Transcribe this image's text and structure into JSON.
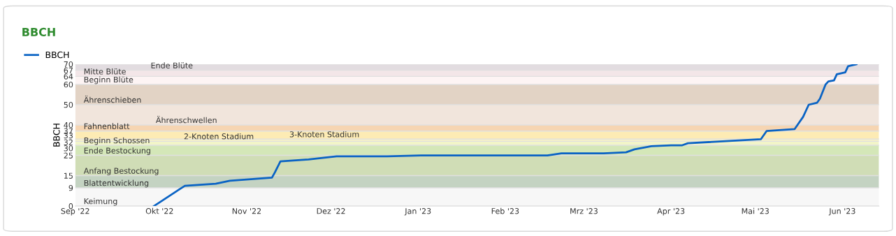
{
  "chart_data": {
    "type": "line",
    "title": "BBCH",
    "ylabel": "BBCH",
    "x": [
      "2022-09-29",
      "2022-10-10",
      "2022-10-21",
      "2022-10-26",
      "2022-11-10",
      "2022-11-11",
      "2022-11-13",
      "2022-11-23",
      "2022-12-03",
      "2022-12-21",
      "2023-01-02",
      "2023-01-31",
      "2023-02-16",
      "2023-02-21",
      "2023-03-02",
      "2023-03-08",
      "2023-03-16",
      "2023-03-19",
      "2023-03-25",
      "2023-04-01",
      "2023-04-05",
      "2023-04-07",
      "2023-05-03",
      "2023-05-05",
      "2023-05-15",
      "2023-05-18",
      "2023-05-20",
      "2023-05-23",
      "2023-05-24",
      "2023-05-26",
      "2023-05-27",
      "2023-05-29",
      "2023-05-30",
      "2023-06-02",
      "2023-06-03",
      "2023-06-06"
    ],
    "series": [
      {
        "name": "BBCH",
        "color": "#0a63c4",
        "values": [
          0,
          10,
          11,
          12.5,
          14,
          16.5,
          22,
          23,
          24.5,
          24.5,
          25,
          25,
          25,
          26,
          26,
          26,
          26.5,
          28,
          29.5,
          30,
          30,
          31,
          33,
          37,
          38,
          44,
          50,
          51,
          53,
          60,
          61.5,
          62,
          65,
          66,
          69,
          70
        ]
      }
    ],
    "xlim": [
      "2022-09-01",
      "2023-06-14"
    ],
    "xticks": [
      {
        "value": "2022-09-01",
        "label": "Sep '22"
      },
      {
        "value": "2022-10-01",
        "label": "Okt '22"
      },
      {
        "value": "2022-11-01",
        "label": "Nov '22"
      },
      {
        "value": "2022-12-01",
        "label": "Dez '22"
      },
      {
        "value": "2023-01-01",
        "label": "Jan '23"
      },
      {
        "value": "2023-02-01",
        "label": "Feb '23"
      },
      {
        "value": "2023-03-01",
        "label": "Mrz '23"
      },
      {
        "value": "2023-04-01",
        "label": "Apr '23"
      },
      {
        "value": "2023-05-01",
        "label": "Mai '23"
      },
      {
        "value": "2023-06-01",
        "label": "Jun '23"
      }
    ],
    "ylim": [
      0,
      70
    ],
    "yticks": [
      0,
      9,
      15,
      25,
      30,
      32,
      33,
      37,
      40,
      50,
      60,
      64,
      67,
      70
    ],
    "bands": [
      {
        "axis": "y",
        "from": 0,
        "to": 9,
        "label": "Keimung",
        "color": "#f7f7f7"
      },
      {
        "axis": "y",
        "from": 9,
        "to": 15,
        "label": "Blattentwicklung",
        "color": "#c4d3c2"
      },
      {
        "axis": "y",
        "from": 15,
        "to": 25,
        "label": "Anfang Bestockung",
        "color": "#d0ddb6"
      },
      {
        "axis": "y",
        "from": 25,
        "to": 30,
        "label": "Ende Bestockung",
        "color": "#d4e7b8"
      },
      {
        "axis": "y",
        "from": 30,
        "to": 32,
        "label": "Beginn Schossen",
        "color": "#f2f5c8"
      },
      {
        "axis": "y",
        "from": 32,
        "to": 33,
        "label": "2-Knoten Stadium",
        "color": "#fcf6c0"
      },
      {
        "axis": "y",
        "from": 33,
        "to": 37,
        "label": "3-Knoten Stadium",
        "color": "#fdebb4"
      },
      {
        "axis": "y",
        "from": 37,
        "to": 40,
        "label": "Fahnenblatt",
        "color": "#f6d5b2"
      },
      {
        "axis": "y",
        "from": 40,
        "to": 50,
        "label": "Ährenschwellen",
        "color": "#f1e5dc"
      },
      {
        "axis": "y",
        "from": 50,
        "to": 60,
        "label": "Ährenschieben",
        "color": "#e2d3c5"
      },
      {
        "axis": "y",
        "from": 60,
        "to": 64,
        "label": "Beginn Blüte",
        "color": "#fdf4f4"
      },
      {
        "axis": "y",
        "from": 64,
        "to": 67,
        "label": "Mitte Blüte",
        "color": "#f3e6e8"
      },
      {
        "axis": "y",
        "from": 67,
        "to": 70,
        "label": "Ende Blüte",
        "color": "#e2dce0"
      }
    ],
    "grid": "y",
    "legend": "top left",
    "marker": "none",
    "line_style": "solid"
  }
}
